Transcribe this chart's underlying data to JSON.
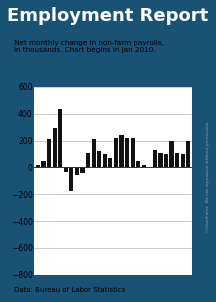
{
  "title": "Employment Report",
  "subtitle": "Net monthly change in non-farm payrolls,\nin thousands. Chart begins in Jan 2010.",
  "footer": "Data: Bureau of Labor Statistics",
  "watermark": "©ChartForce  Do not reproduce without permission.",
  "values": [
    14,
    45,
    208,
    290,
    432,
    -35,
    -175,
    -54,
    -41,
    107,
    210,
    120,
    100,
    70,
    220,
    240,
    220,
    220,
    50,
    20,
    0,
    130,
    110,
    100,
    200,
    110,
    100,
    200
  ],
  "ylim": [
    -800,
    600
  ],
  "yticks": [
    -800,
    -600,
    -400,
    -200,
    0,
    200,
    400,
    600
  ],
  "bar_color": "#111111",
  "bg_color": "#ffffff",
  "title_bg": "#1a5276",
  "title_fg": "#ffffff",
  "border_color": "#1a5276"
}
